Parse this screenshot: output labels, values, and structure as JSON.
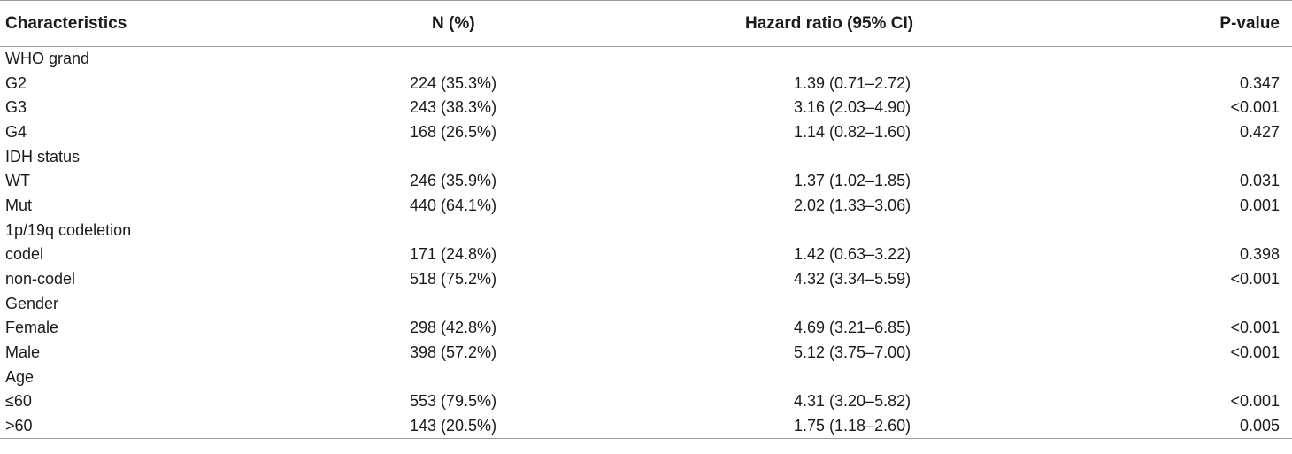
{
  "table": {
    "headers": {
      "characteristics": "Characteristics",
      "n_pct": "N (%)",
      "hazard_ratio": "Hazard ratio (95% CI)",
      "p_value": "P-value"
    },
    "rows": [
      {
        "label": "WHO grand",
        "n": "",
        "hr": "",
        "p": ""
      },
      {
        "label": "G2",
        "n": "224 (35.3%)",
        "hr": "1.39 (0.71–2.72)",
        "p": "0.347"
      },
      {
        "label": "G3",
        "n": "243 (38.3%)",
        "hr": "3.16 (2.03–4.90)",
        "p": "<0.001"
      },
      {
        "label": "G4",
        "n": "168 (26.5%)",
        "hr": "1.14 (0.82–1.60)",
        "p": "0.427"
      },
      {
        "label": "IDH status",
        "n": "",
        "hr": "",
        "p": ""
      },
      {
        "label": "WT",
        "n": "246 (35.9%)",
        "hr": "1.37 (1.02–1.85)",
        "p": "0.031"
      },
      {
        "label": "Mut",
        "n": "440 (64.1%)",
        "hr": "2.02 (1.33–3.06)",
        "p": "0.001"
      },
      {
        "label": "1p/19q codeletion",
        "n": "",
        "hr": "",
        "p": ""
      },
      {
        "label": "codel",
        "n": "171 (24.8%)",
        "hr": "1.42 (0.63–3.22)",
        "p": "0.398"
      },
      {
        "label": "non-codel",
        "n": "518 (75.2%)",
        "hr": "4.32 (3.34–5.59)",
        "p": "<0.001"
      },
      {
        "label": "Gender",
        "n": "",
        "hr": "",
        "p": ""
      },
      {
        "label": "Female",
        "n": "298 (42.8%)",
        "hr": "4.69 (3.21–6.85)",
        "p": "<0.001"
      },
      {
        "label": "Male",
        "n": "398 (57.2%)",
        "hr": "5.12 (3.75–7.00)",
        "p": "<0.001"
      },
      {
        "label": "Age",
        "n": "",
        "hr": "",
        "p": ""
      },
      {
        "label": "≤60",
        "n": "553 (79.5%)",
        "hr": "4.31 (3.20–5.82)",
        "p": "<0.001"
      },
      {
        "label": ">60",
        "n": "143 (20.5%)",
        "hr": "1.75 (1.18–2.60)",
        "p": "0.005"
      }
    ]
  }
}
